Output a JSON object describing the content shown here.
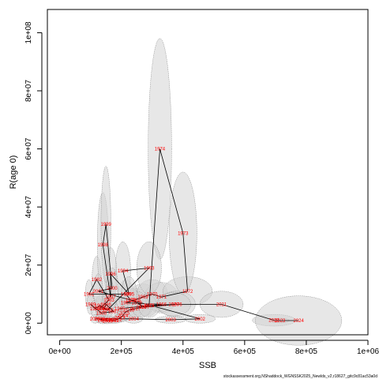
{
  "chart_data": {
    "type": "scatter",
    "xlabel": "SSB",
    "ylabel": "R(age 0)",
    "xlim": [
      -40000,
      1000000
    ],
    "ylim": [
      -4000000,
      108000000
    ],
    "x_ticks": [
      0,
      200000,
      400000,
      600000,
      800000,
      1000000
    ],
    "x_tick_labels": [
      "0e+00",
      "2e+05",
      "4e+05",
      "6e+05",
      "8e+05",
      "1e+06"
    ],
    "y_ticks": [
      0,
      20000000,
      40000000,
      60000000,
      80000000,
      100000000
    ],
    "y_tick_labels": [
      "0e+00",
      "2e+07",
      "4e+07",
      "6e+07",
      "8e+07",
      "1e+08"
    ],
    "grid": false,
    "point_color": "#ff0000",
    "ellipse_color": "#d3d3d3",
    "points": [
      {
        "year": "1965",
        "x": 195000,
        "y": 5000000,
        "sx": 18000,
        "sy": 4000000
      },
      {
        "year": "1966",
        "x": 330000,
        "y": 6500000,
        "sx": 40000,
        "sy": 3000000
      },
      {
        "year": "1967",
        "x": 215000,
        "y": 7000000,
        "sx": 30000,
        "sy": 3500000
      },
      {
        "year": "1968",
        "x": 245000,
        "y": 8000000,
        "sx": 40000,
        "sy": 4000000
      },
      {
        "year": "1969",
        "x": 270000,
        "y": 9000000,
        "sx": 45000,
        "sy": 4500000
      },
      {
        "year": "1970",
        "x": 300000,
        "y": 10000000,
        "sx": 50000,
        "sy": 5000000
      },
      {
        "year": "1971",
        "x": 330000,
        "y": 9000000,
        "sx": 55000,
        "sy": 5000000
      },
      {
        "year": "1972",
        "x": 415000,
        "y": 11000000,
        "sx": 80000,
        "sy": 5000000
      },
      {
        "year": "1973",
        "x": 400000,
        "y": 31000000,
        "sx": 45000,
        "sy": 21000000
      },
      {
        "year": "1974",
        "x": 325000,
        "y": 60000000,
        "sx": 38000,
        "sy": 38000000
      },
      {
        "year": "1975",
        "x": 290000,
        "y": 6000000,
        "sx": 25000,
        "sy": 3500000
      },
      {
        "year": "1976",
        "x": 380000,
        "y": 6500000,
        "sx": 60000,
        "sy": 4500000
      },
      {
        "year": "1977",
        "x": 275000,
        "y": 5500000,
        "sx": 25000,
        "sy": 3000000
      },
      {
        "year": "1978",
        "x": 250000,
        "y": 7000000,
        "sx": 30000,
        "sy": 4000000
      },
      {
        "year": "1979",
        "x": 230000,
        "y": 8000000,
        "sx": 30000,
        "sy": 4000000
      },
      {
        "year": "1980",
        "x": 215000,
        "y": 10000000,
        "sx": 25000,
        "sy": 5000000
      },
      {
        "year": "1981",
        "x": 95000,
        "y": 10000000,
        "sx": 12000,
        "sy": 5000000
      },
      {
        "year": "1982",
        "x": 120000,
        "y": 15000000,
        "sx": 15000,
        "sy": 8000000
      },
      {
        "year": "1983",
        "x": 160000,
        "y": 8000000,
        "sx": 20000,
        "sy": 4000000
      },
      {
        "year": "1984",
        "x": 130000,
        "y": 5000000,
        "sx": 15000,
        "sy": 3500000
      },
      {
        "year": "1985",
        "x": 145000,
        "y": 5000000,
        "sx": 15000,
        "sy": 3500000
      },
      {
        "year": "1986",
        "x": 150000,
        "y": 6500000,
        "sx": 18000,
        "sy": 4000000
      },
      {
        "year": "1987",
        "x": 175000,
        "y": 4000000,
        "sx": 18000,
        "sy": 3000000
      },
      {
        "year": "1988",
        "x": 135000,
        "y": 3500000,
        "sx": 15000,
        "sy": 2500000
      },
      {
        "year": "1989",
        "x": 100000,
        "y": 6500000,
        "sx": 12000,
        "sy": 3500000
      },
      {
        "year": "1990",
        "x": 115000,
        "y": 5000000,
        "sx": 14000,
        "sy": 3000000
      },
      {
        "year": "1991",
        "x": 130000,
        "y": 6000000,
        "sx": 15000,
        "sy": 3500000
      },
      {
        "year": "1992",
        "x": 155000,
        "y": 4500000,
        "sx": 15000,
        "sy": 3000000
      },
      {
        "year": "1993",
        "x": 290000,
        "y": 19000000,
        "sx": 40000,
        "sy": 9000000
      },
      {
        "year": "1994",
        "x": 205000,
        "y": 18000000,
        "sx": 25000,
        "sy": 10000000
      },
      {
        "year": "1995",
        "x": 225000,
        "y": 10000000,
        "sx": 25000,
        "sy": 6000000
      },
      {
        "year": "1996",
        "x": 165000,
        "y": 17000000,
        "sx": 20000,
        "sy": 9000000
      },
      {
        "year": "1997",
        "x": 165000,
        "y": 9000000,
        "sx": 18000,
        "sy": 5000000
      },
      {
        "year": "1998",
        "x": 140000,
        "y": 27000000,
        "sx": 18000,
        "sy": 18000000
      },
      {
        "year": "1999",
        "x": 150000,
        "y": 34000000,
        "sx": 16000,
        "sy": 20000000
      },
      {
        "year": "2000",
        "x": 170000,
        "y": 12000000,
        "sx": 20000,
        "sy": 7000000
      },
      {
        "year": "2001",
        "x": 125000,
        "y": 11000000,
        "sx": 15000,
        "sy": 6000000
      },
      {
        "year": "2002",
        "x": 455000,
        "y": 1500000,
        "sx": 50000,
        "sy": 1500000
      },
      {
        "year": "2003",
        "x": 360000,
        "y": 1200000,
        "sx": 50000,
        "sy": 1200000
      },
      {
        "year": "2004",
        "x": 240000,
        "y": 1500000,
        "sx": 30000,
        "sy": 1500000
      },
      {
        "year": "2005",
        "x": 115000,
        "y": 1500000,
        "sx": 15000,
        "sy": 1500000
      },
      {
        "year": "2006",
        "x": 130000,
        "y": 1500000,
        "sx": 15000,
        "sy": 1500000
      },
      {
        "year": "2007",
        "x": 140000,
        "y": 1000000,
        "sx": 15000,
        "sy": 1200000
      },
      {
        "year": "2008",
        "x": 150000,
        "y": 1200000,
        "sx": 15000,
        "sy": 1200000
      },
      {
        "year": "2009",
        "x": 155000,
        "y": 800000,
        "sx": 15000,
        "sy": 1000000
      },
      {
        "year": "2010",
        "x": 165000,
        "y": 1200000,
        "sx": 15000,
        "sy": 1200000
      },
      {
        "year": "2011",
        "x": 175000,
        "y": 900000,
        "sx": 15000,
        "sy": 1000000
      },
      {
        "year": "2012",
        "x": 185000,
        "y": 1200000,
        "sx": 16000,
        "sy": 1200000
      },
      {
        "year": "2013",
        "x": 195000,
        "y": 1800000,
        "sx": 18000,
        "sy": 1500000
      },
      {
        "year": "2014",
        "x": 205000,
        "y": 2500000,
        "sx": 20000,
        "sy": 2000000
      },
      {
        "year": "2015",
        "x": 210000,
        "y": 3500000,
        "sx": 20000,
        "sy": 2500000
      },
      {
        "year": "2016",
        "x": 225000,
        "y": 4500000,
        "sx": 25000,
        "sy": 3000000
      },
      {
        "year": "2017",
        "x": 245000,
        "y": 5000000,
        "sx": 25000,
        "sy": 3000000
      },
      {
        "year": "2018",
        "x": 265000,
        "y": 5500000,
        "sx": 30000,
        "sy": 3500000
      },
      {
        "year": "2019",
        "x": 290000,
        "y": 6000000,
        "sx": 35000,
        "sy": 4000000
      },
      {
        "year": "2020",
        "x": 370000,
        "y": 6500000,
        "sx": 55000,
        "sy": 4000000
      },
      {
        "year": "2021",
        "x": 525000,
        "y": 6500000,
        "sx": 70000,
        "sy": 4500000
      },
      {
        "year": "2022",
        "x": 695000,
        "y": 1000000,
        "sx": 70000,
        "sy": 2000000
      },
      {
        "year": "2023",
        "x": 715000,
        "y": 900000,
        "sx": 30000,
        "sy": 800000
      },
      {
        "year": "2024",
        "x": 775000,
        "y": 900000,
        "sx": 140000,
        "sy": 8500000
      }
    ],
    "footer": "stockassessment.org,NShaddock_WGNSSK2025_Newlds_v2,r18627_gitc9c81ac53a0d"
  }
}
